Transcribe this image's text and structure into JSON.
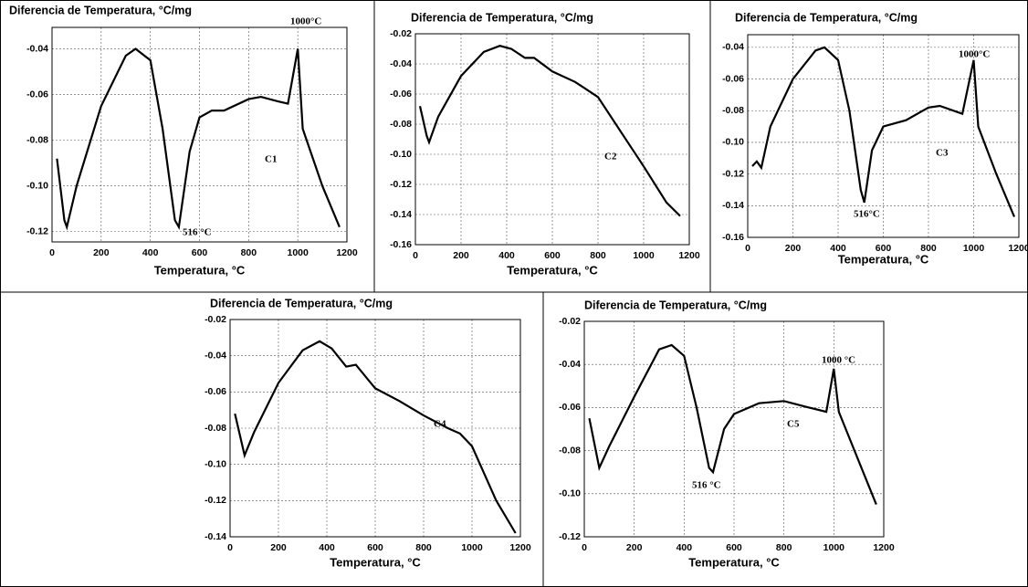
{
  "chart_data": [
    {
      "type": "line",
      "title": "Diferencia de Temperatura, °C/mg",
      "x_label": "Temperatura, °C",
      "xlim": [
        0,
        1200
      ],
      "xticks": [
        0,
        200,
        400,
        600,
        800,
        1000,
        1200
      ],
      "ylim": [
        -0.1245,
        -0.0306
      ],
      "yticks": [
        -0.04,
        -0.06,
        -0.08,
        {
          "value": -0.1,
          "label": "-0.10"
        },
        -0.12
      ],
      "grid": true,
      "annotations": [
        "C1",
        "516 °C",
        "1000°C"
      ],
      "series": [
        {
          "name": "C1",
          "color": "#000000",
          "x": [
            20,
            50,
            60,
            100,
            200,
            300,
            340,
            400,
            450,
            500,
            516,
            560,
            600,
            650,
            700,
            800,
            850,
            920,
            960,
            1000,
            1020,
            1100,
            1170
          ],
          "values": [
            -0.088,
            -0.115,
            -0.118,
            -0.1,
            -0.065,
            -0.043,
            -0.04,
            -0.045,
            -0.075,
            -0.115,
            -0.118,
            -0.085,
            -0.07,
            -0.067,
            -0.067,
            -0.062,
            -0.061,
            -0.063,
            -0.064,
            -0.04,
            -0.075,
            -0.1,
            -0.118
          ]
        }
      ]
    },
    {
      "type": "line",
      "title": "Diferencia de Temperatura, °C/mg",
      "x_label": "Temperatura, °C",
      "xlim": [
        0,
        1200
      ],
      "xticks": [
        0,
        200,
        400,
        600,
        800,
        1000,
        1200
      ],
      "ylim": [
        -0.16,
        -0.02
      ],
      "yticks": [
        -0.02,
        -0.04,
        -0.06,
        -0.08,
        {
          "value": -0.1,
          "label": "-0.10"
        },
        -0.12,
        -0.14,
        -0.16
      ],
      "grid": true,
      "annotations": [
        "C2"
      ],
      "series": [
        {
          "name": "C2",
          "color": "#000000",
          "x": [
            20,
            50,
            60,
            100,
            200,
            300,
            370,
            420,
            480,
            520,
            600,
            700,
            800,
            900,
            1000,
            1100,
            1160
          ],
          "values": [
            -0.068,
            -0.088,
            -0.092,
            -0.075,
            -0.048,
            -0.032,
            -0.028,
            -0.03,
            -0.036,
            -0.036,
            -0.045,
            -0.052,
            -0.062,
            -0.085,
            -0.108,
            -0.132,
            -0.141
          ]
        }
      ]
    },
    {
      "type": "line",
      "title": "Diferencia de Temperatura, °C/mg",
      "x_label": "Temperatura, °C",
      "xlim": [
        0,
        1200
      ],
      "xticks": [
        0,
        200,
        400,
        600,
        800,
        1000,
        1200
      ],
      "ylim": [
        -0.16,
        -0.032
      ],
      "yticks": [
        -0.04,
        -0.06,
        -0.08,
        {
          "value": -0.1,
          "label": "-0.10"
        },
        -0.12,
        -0.14,
        -0.16
      ],
      "grid": true,
      "annotations": [
        "C3",
        "516°C",
        "1000°C"
      ],
      "series": [
        {
          "name": "C3",
          "color": "#000000",
          "x": [
            20,
            40,
            60,
            100,
            200,
            300,
            340,
            400,
            450,
            500,
            516,
            550,
            600,
            700,
            800,
            850,
            950,
            1000,
            1020,
            1100,
            1180
          ],
          "values": [
            -0.115,
            -0.112,
            -0.116,
            -0.09,
            -0.06,
            -0.042,
            -0.04,
            -0.048,
            -0.08,
            -0.13,
            -0.138,
            -0.105,
            -0.09,
            -0.086,
            -0.078,
            -0.077,
            -0.082,
            -0.048,
            -0.09,
            -0.12,
            -0.147
          ]
        }
      ]
    },
    {
      "type": "line",
      "title": "Diferencia de Temperatura, °C/mg",
      "x_label": "Temperatura, °C",
      "xlim": [
        0,
        1200
      ],
      "xticks": [
        0,
        200,
        400,
        600,
        800,
        1000,
        1200
      ],
      "ylim": [
        -0.14,
        -0.02
      ],
      "yticks": [
        -0.02,
        -0.04,
        -0.06,
        -0.08,
        {
          "value": -0.1,
          "label": "-0.10"
        },
        -0.12,
        -0.14
      ],
      "grid": true,
      "annotations": [
        "C4"
      ],
      "series": [
        {
          "name": "C4",
          "color": "#000000",
          "x": [
            20,
            60,
            100,
            200,
            300,
            370,
            420,
            480,
            520,
            600,
            700,
            800,
            900,
            950,
            1000,
            1100,
            1180
          ],
          "values": [
            -0.072,
            -0.095,
            -0.082,
            -0.055,
            -0.037,
            -0.032,
            -0.036,
            -0.046,
            -0.045,
            -0.058,
            -0.065,
            -0.073,
            -0.08,
            -0.083,
            -0.09,
            -0.12,
            -0.138
          ]
        }
      ]
    },
    {
      "type": "line",
      "title": "Diferencia de Temperatura, °C/mg",
      "x_label": "Temperatura, °C",
      "xlim": [
        0,
        1200
      ],
      "xticks": [
        0,
        200,
        400,
        600,
        800,
        1000,
        1200
      ],
      "ylim": [
        -0.12,
        -0.02
      ],
      "yticks": [
        -0.02,
        -0.04,
        -0.06,
        -0.08,
        {
          "value": -0.1,
          "label": "-0.10"
        },
        -0.12
      ],
      "grid": true,
      "annotations": [
        "C5",
        "516 °C",
        "1000 °C"
      ],
      "series": [
        {
          "name": "C5",
          "color": "#000000",
          "x": [
            20,
            60,
            100,
            200,
            300,
            350,
            400,
            450,
            500,
            516,
            560,
            600,
            700,
            800,
            900,
            970,
            1000,
            1020,
            1100,
            1170
          ],
          "values": [
            -0.065,
            -0.088,
            -0.078,
            -0.055,
            -0.033,
            -0.031,
            -0.036,
            -0.06,
            -0.088,
            -0.09,
            -0.07,
            -0.063,
            -0.058,
            -0.057,
            -0.06,
            -0.062,
            -0.042,
            -0.062,
            -0.085,
            -0.105
          ]
        }
      ]
    }
  ]
}
